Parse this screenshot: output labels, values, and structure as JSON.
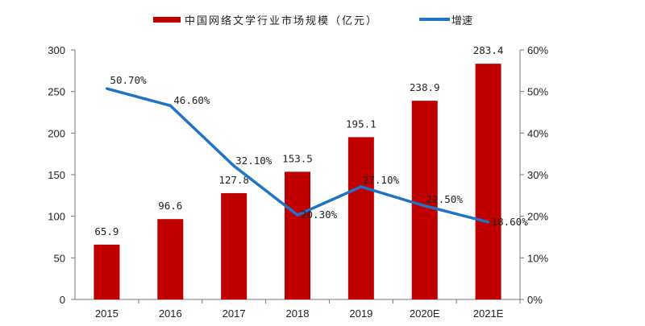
{
  "chart_data": {
    "type": "bar+line",
    "categories": [
      "2015",
      "2016",
      "2017",
      "2018",
      "2019",
      "2020E",
      "2021E"
    ],
    "series": [
      {
        "name": "中国网络文学行业市场规模（亿元）",
        "type": "bar",
        "axis": "left",
        "color": "#C00000",
        "values": [
          65.9,
          96.6,
          127.8,
          153.5,
          195.1,
          238.9,
          283.4
        ],
        "labels": [
          "65.9",
          "96.6",
          "127.8",
          "153.5",
          "195.1",
          "238.9",
          "283.4"
        ]
      },
      {
        "name": "增速",
        "type": "line",
        "axis": "right",
        "color": "#1F74C8",
        "values": [
          50.7,
          46.6,
          32.1,
          20.3,
          27.1,
          22.5,
          18.6
        ],
        "labels": [
          "50.70%",
          "46.60%",
          "32.10%",
          "20.30%",
          "27.10%",
          "22.50%",
          "18.60%"
        ]
      }
    ],
    "y_left": {
      "range": [
        0,
        300
      ],
      "ticks": [
        "0",
        "50",
        "100",
        "150",
        "200",
        "250",
        "300"
      ]
    },
    "y_right": {
      "range": [
        0,
        60
      ],
      "ticks": [
        "0%",
        "10%",
        "20%",
        "30%",
        "40%",
        "50%",
        "60%"
      ]
    },
    "legend": "top",
    "grid": false
  }
}
